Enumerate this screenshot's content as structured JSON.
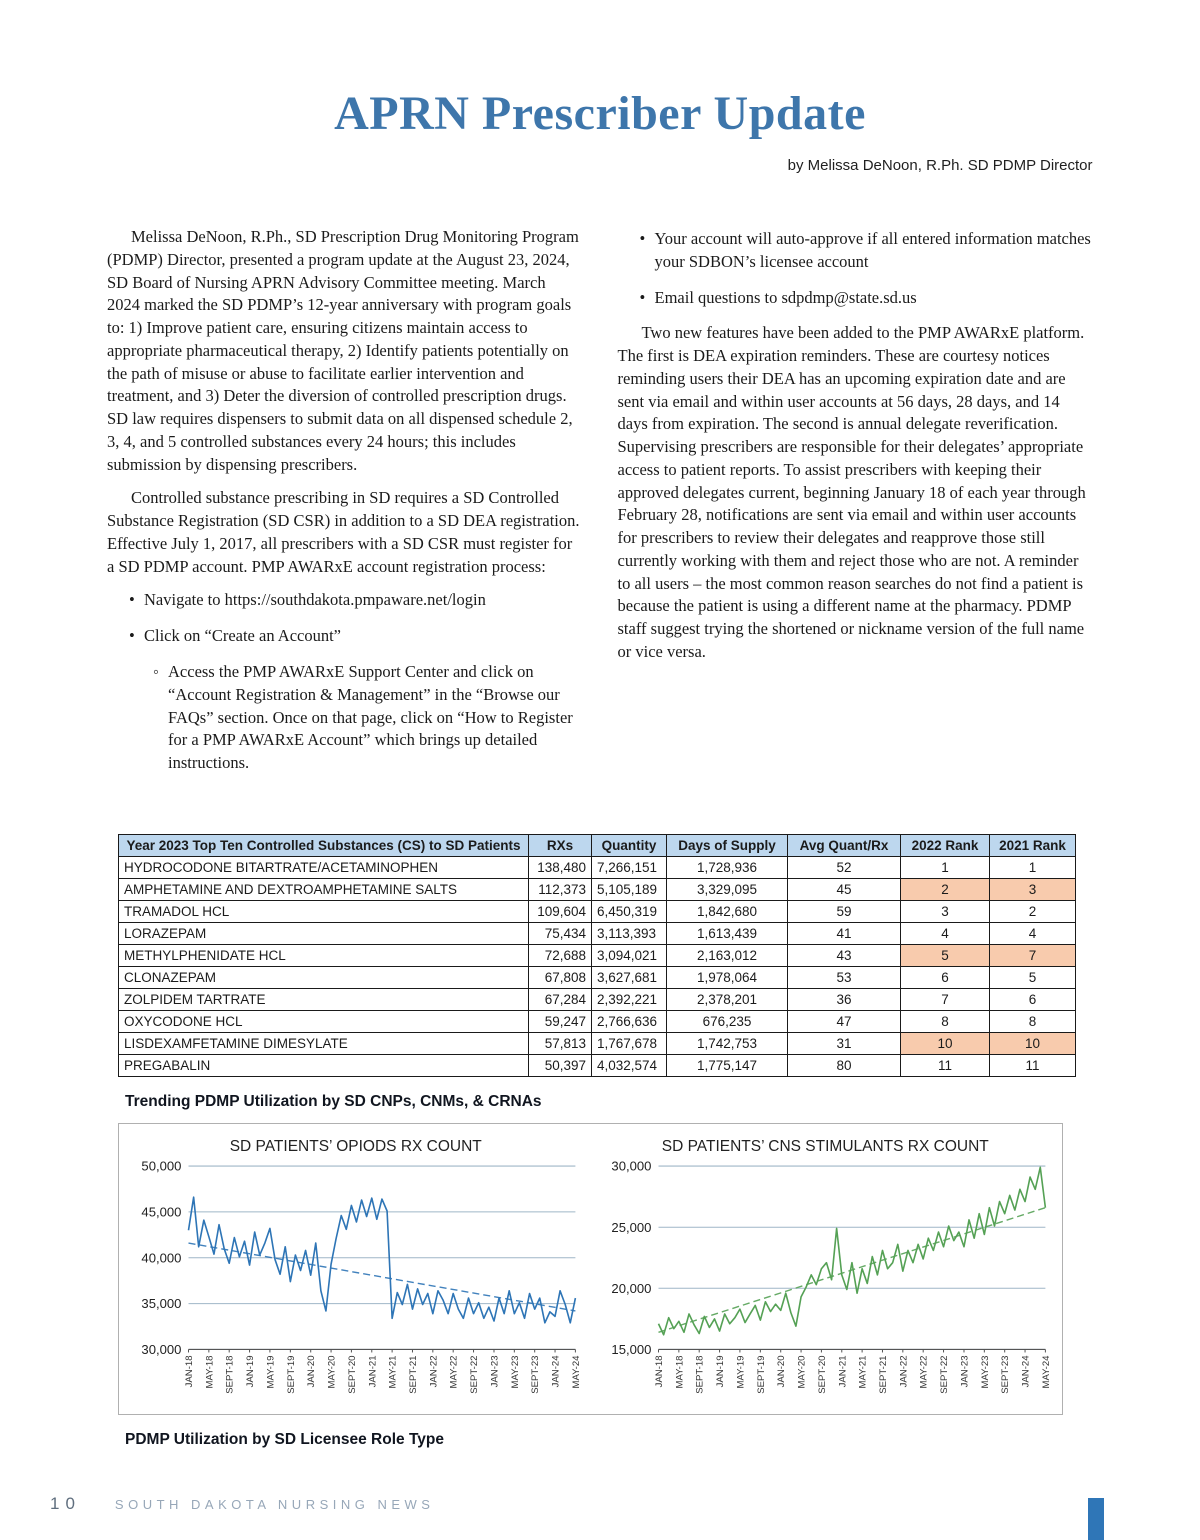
{
  "page": {
    "title": "APRN Prescriber Update",
    "byline": "by Melissa DeNoon, R.Ph. SD PDMP Director",
    "footer": {
      "page_number": "10",
      "publication": "SOUTH DAKOTA NURSING NEWS"
    },
    "accent_color": "#2f76b7"
  },
  "article": {
    "left": {
      "para1": "Melissa DeNoon, R.Ph., SD Prescription Drug Monitoring Program (PDMP) Director,  presented a program update at the August 23, 2024, SD Board of Nursing APRN Advisory Committee meeting. March 2024 marked the SD PDMP’s 12-year anniversary with program goals to: 1) Improve patient care, ensuring citizens maintain access to appropriate pharmaceutical therapy, 2) Identify patients potentially on the path of misuse or abuse to facilitate earlier intervention and treatment, and 3) Deter the diversion of controlled prescription drugs. SD law requires dispensers to submit data on all dispensed schedule 2, 3, 4, and 5 controlled substances every 24 hours; this includes submission by dispensing prescribers.",
      "para2": "Controlled substance prescribing in SD requires a SD Controlled Substance Registration (SD CSR) in addition to a SD DEA registration. Effective July 1, 2017, all prescribers with a SD CSR must register for a SD PDMP account. PMP AWARxE account registration process:",
      "bullet1": "Navigate to https://southdakota.pmpaware.net/login",
      "bullet2": "Click on “Create an Account”",
      "sub_bullet": "Access the PMP AWARxE Support Center and click on “Account Registration & Management” in the “Browse our FAQs” section. Once on that page, click on “How to Register for a PMP AWARxE Account” which brings up detailed instructions."
    },
    "right": {
      "bullet1": "Your account will auto-approve if all entered information matches your SDBON’s licensee account",
      "bullet2": "Email questions to sdpdmp@state.sd.us",
      "para1": "Two new features have been added to the PMP AWARxE platform. The first is DEA expiration reminders. These are courtesy notices reminding users their DEA has an upcoming expiration date and are sent via email and within user accounts at 56 days, 28 days, and 14 days from expiration. The second is annual delegate reverification. Supervising prescribers are responsible for their delegates’ appropriate access to patient reports. To assist prescribers with keeping their approved delegates current, beginning January 18 of each year through February 28, notifications are sent via email and within user accounts for prescribers to review their delegates and reapprove those still currently working with them and reject those who are not. A reminder to all users – the most common reason searches do not find a patient is because the patient is using a different name at the pharmacy. PDMP staff suggest trying the shortened or nickname version of the full name or vice versa."
    }
  },
  "table": {
    "title": "Year 2023 Top Ten Controlled Substances (CS) to SD Patients",
    "columns": [
      "RXs",
      "Quantity",
      "Days of Supply",
      "Avg Quant/Rx",
      "2022 Rank",
      "2021 Rank"
    ],
    "header_bg": "#bdd7ee",
    "highlight_bg": "#f8cbad",
    "rows": [
      {
        "name": "HYDROCODONE BITARTRATE/ACETAMINOPHEN",
        "rxs": "138,480",
        "quantity": "7,266,151",
        "days": "1,728,936",
        "avg": "52",
        "rank2022": "1",
        "rank2021": "1",
        "hl2022": false,
        "hl2021": false
      },
      {
        "name": "AMPHETAMINE AND DEXTROAMPHETAMINE SALTS",
        "rxs": "112,373",
        "quantity": "5,105,189",
        "days": "3,329,095",
        "avg": "45",
        "rank2022": "2",
        "rank2021": "3",
        "hl2022": true,
        "hl2021": true
      },
      {
        "name": "TRAMADOL HCL",
        "rxs": "109,604",
        "quantity": "6,450,319",
        "days": "1,842,680",
        "avg": "59",
        "rank2022": "3",
        "rank2021": "2",
        "hl2022": false,
        "hl2021": false
      },
      {
        "name": "LORAZEPAM",
        "rxs": "75,434",
        "quantity": "3,113,393",
        "days": "1,613,439",
        "avg": "41",
        "rank2022": "4",
        "rank2021": "4",
        "hl2022": false,
        "hl2021": false
      },
      {
        "name": "METHYLPHENIDATE HCL",
        "rxs": "72,688",
        "quantity": "3,094,021",
        "days": "2,163,012",
        "avg": "43",
        "rank2022": "5",
        "rank2021": "7",
        "hl2022": true,
        "hl2021": true
      },
      {
        "name": "CLONAZEPAM",
        "rxs": "67,808",
        "quantity": "3,627,681",
        "days": "1,978,064",
        "avg": "53",
        "rank2022": "6",
        "rank2021": "5",
        "hl2022": false,
        "hl2021": false
      },
      {
        "name": "ZOLPIDEM TARTRATE",
        "rxs": "67,284",
        "quantity": "2,392,221",
        "days": "2,378,201",
        "avg": "36",
        "rank2022": "7",
        "rank2021": "6",
        "hl2022": false,
        "hl2021": false
      },
      {
        "name": "OXYCODONE HCL",
        "rxs": "59,247",
        "quantity": "2,766,636",
        "days": "676,235",
        "avg": "47",
        "rank2022": "8",
        "rank2021": "8",
        "hl2022": false,
        "hl2021": false
      },
      {
        "name": "LISDEXAMFETAMINE DIMESYLATE",
        "rxs": "57,813",
        "quantity": "1,767,678",
        "days": "1,742,753",
        "avg": "31",
        "rank2022": "10",
        "rank2021": "10",
        "hl2022": true,
        "hl2021": true
      },
      {
        "name": "PREGABALIN",
        "rxs": "50,397",
        "quantity": "4,032,574",
        "days": "1,775,147",
        "avg": "80",
        "rank2022": "11",
        "rank2021": "11",
        "hl2022": false,
        "hl2021": false
      }
    ]
  },
  "sections": {
    "trending_heading": "Trending PDMP Utilization by SD CNPs, CNMs, & CRNAs",
    "role_type_heading": "PDMP Utilization by SD Licensee Role Type"
  },
  "chart_data": [
    {
      "type": "line",
      "title": "SD PATIENTS’ OPIODS RX COUNT",
      "ylim": [
        30000,
        50000
      ],
      "ystep": 5000,
      "color": "#2e75b6",
      "trend": [
        41600,
        34200
      ],
      "tick_every": 4,
      "x_tick_labels": [
        "JAN-18",
        "MAY-18",
        "SEPT-18",
        "JAN-19",
        "MAY-19",
        "SEPT-19",
        "JAN-20",
        "MAY-20",
        "SEPT-20",
        "JAN-21",
        "MAY-21",
        "SEPT-21",
        "JAN-22",
        "MAY-22",
        "SEPT-22",
        "JAN-23",
        "MAY-23",
        "SEPT-23",
        "JAN-24",
        "MAY-24"
      ],
      "x_note": "monthly values JAN-18 through MAY-24",
      "values": [
        43000,
        46600,
        41200,
        44100,
        42300,
        40400,
        43600,
        41000,
        39400,
        42200,
        40100,
        41800,
        39200,
        42800,
        40300,
        41600,
        43200,
        39800,
        38200,
        41200,
        37400,
        40300,
        38600,
        40800,
        38100,
        41600,
        36400,
        34200,
        39300,
        42100,
        44600,
        43100,
        45700,
        43900,
        46300,
        44500,
        46500,
        44200,
        46400,
        45100,
        33400,
        36200,
        34900,
        37100,
        34400,
        36600,
        34900,
        36100,
        33900,
        36400,
        35400,
        33900,
        36100,
        34400,
        33400,
        35600,
        33900,
        35100,
        33400,
        34600,
        33100,
        35600,
        33900,
        36400,
        33900,
        35100,
        33400,
        36100,
        34400,
        35600,
        32900,
        34100,
        33600,
        36400,
        34900,
        32900,
        35600
      ]
    },
    {
      "type": "line",
      "title": "SD PATIENTS’ CNS STIMULANTS RX COUNT",
      "ylim": [
        15000,
        30000
      ],
      "ystep": 5000,
      "color": "#55a155",
      "trend": [
        16400,
        26600
      ],
      "tick_every": 4,
      "x_tick_labels": [
        "JAN-18",
        "MAY-18",
        "SEPT-18",
        "JAN-19",
        "MAY-19",
        "SEPT-19",
        "JAN-20",
        "MAY-20",
        "SEPT-20",
        "JAN-21",
        "MAY-21",
        "SEPT-21",
        "JAN-22",
        "MAY-22",
        "SEPT-22",
        "JAN-23",
        "MAY-23",
        "SEPT-23",
        "JAN-24",
        "MAY-24"
      ],
      "x_note": "monthly values JAN-18 through MAY-24",
      "values": [
        17100,
        16200,
        17600,
        16700,
        17300,
        16400,
        17900,
        17000,
        16300,
        17700,
        16800,
        17500,
        16500,
        17900,
        17100,
        17600,
        18300,
        17200,
        17900,
        18600,
        17400,
        18900,
        18100,
        18700,
        18200,
        19600,
        18000,
        16900,
        19300,
        20100,
        21100,
        20300,
        21600,
        22100,
        20700,
        24900,
        21100,
        19900,
        22100,
        19600,
        21600,
        20400,
        22600,
        21100,
        23100,
        21600,
        22100,
        23600,
        21400,
        23100,
        22100,
        23600,
        22400,
        24100,
        23100,
        24600,
        23400,
        25100,
        23900,
        24600,
        23400,
        25600,
        24100,
        26100,
        24400,
        26600,
        25100,
        27100,
        26100,
        27600,
        26400,
        28100,
        27100,
        29100,
        28100,
        29900,
        26600
      ]
    }
  ]
}
